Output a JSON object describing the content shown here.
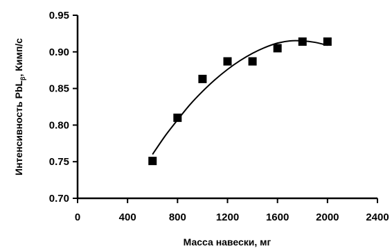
{
  "chart_data": {
    "type": "scatter",
    "xlabel": "Масса  навески, мг",
    "ylabel_main": "Интенсивность PbL",
    "ylabel_sub": "β",
    "ylabel_tail": ", Кимп/с",
    "xlim": [
      0,
      2400
    ],
    "ylim": [
      0.7,
      0.95
    ],
    "xticks": [
      0,
      400,
      800,
      1200,
      1600,
      2000,
      2400
    ],
    "xtick_labels": [
      "0",
      "400",
      "800",
      "1200",
      "1600",
      "2000",
      "2400"
    ],
    "yticks": [
      0.7,
      0.75,
      0.8,
      0.85,
      0.9,
      0.95
    ],
    "ytick_labels": [
      "0.70",
      "0.75",
      "0.80",
      "0.85",
      "0.90",
      "0.95"
    ],
    "grid": false,
    "series": [
      {
        "marker": "square",
        "x": [
          600,
          800,
          1000,
          1200,
          1400,
          1600,
          1800,
          2000
        ],
        "y": [
          0.751,
          0.81,
          0.863,
          0.887,
          0.887,
          0.905,
          0.914,
          0.914
        ]
      }
    ],
    "fit_curve": {
      "type": "polynomial",
      "x": [
        600,
        700,
        800,
        900,
        1000,
        1100,
        1200,
        1300,
        1400,
        1500,
        1600,
        1700,
        1800,
        1900,
        2000
      ],
      "y": [
        0.76,
        0.785,
        0.807,
        0.828,
        0.846,
        0.862,
        0.876,
        0.888,
        0.898,
        0.906,
        0.912,
        0.915,
        0.915,
        0.913,
        0.909
      ]
    },
    "colors": {
      "marker": "#000000",
      "line": "#000000",
      "axis": "#000000"
    }
  }
}
